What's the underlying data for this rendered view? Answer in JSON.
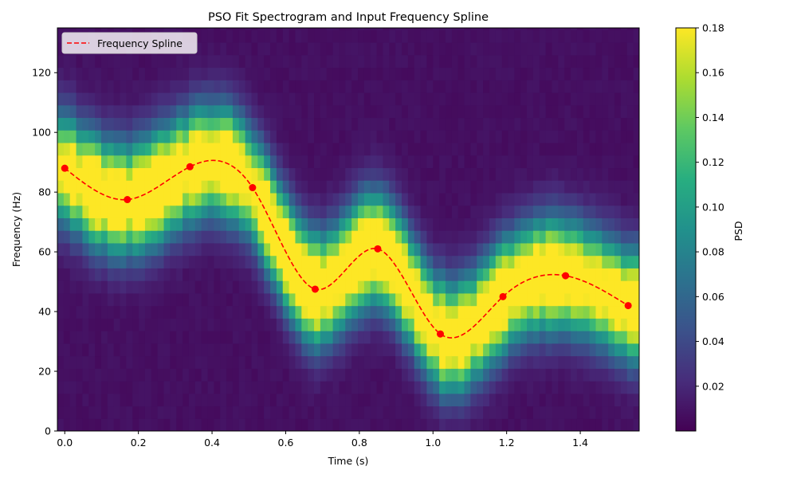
{
  "chart_data": {
    "type": "heatmap",
    "title": "PSO Fit Spectrogram and Input Frequency Spline",
    "xlabel": "Time (s)",
    "ylabel": "Frequency (Hz)",
    "xlim": [
      -0.02,
      1.56
    ],
    "ylim": [
      0,
      135
    ],
    "x_ticks": [
      "0.0",
      "0.2",
      "0.4",
      "0.6",
      "0.8",
      "1.0",
      "1.2",
      "1.4"
    ],
    "y_ticks": [
      "0",
      "20",
      "40",
      "60",
      "80",
      "100",
      "120"
    ],
    "grid": false,
    "legend": {
      "position": "top-left",
      "entries": [
        "Frequency Spline"
      ]
    },
    "colormap": "viridis",
    "colorbar": {
      "label": "PSD",
      "range": [
        0.0,
        0.18
      ],
      "ticks": [
        "0.02",
        "0.04",
        "0.06",
        "0.08",
        "0.10",
        "0.12",
        "0.14",
        "0.16",
        "0.18"
      ]
    },
    "spline": {
      "name": "Frequency Spline",
      "color": "#ff0000",
      "style": "dashed",
      "knots": {
        "x": [
          0.0,
          0.17,
          0.34,
          0.51,
          0.68,
          0.85,
          1.02,
          1.19,
          1.36,
          1.53
        ],
        "y": [
          88,
          77.5,
          88.5,
          81.5,
          47.5,
          61,
          32.5,
          45,
          52,
          42
        ]
      }
    },
    "spectrogram": {
      "time_bin_width": 0.017,
      "freq_bin_width": 4.2,
      "ridge_peak_psd": 0.18,
      "ridge_width_hz": 12,
      "noise_floor_psd": 0.005
    }
  }
}
